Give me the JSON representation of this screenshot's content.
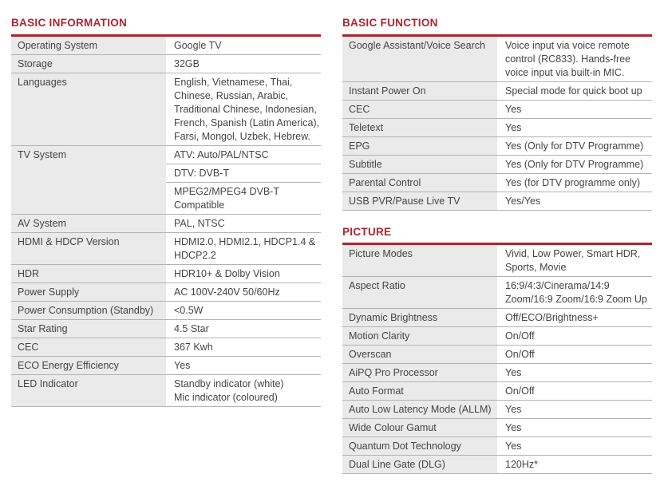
{
  "colors": {
    "accent_red": "#B0242F",
    "label_bg": "#EAEAEA",
    "divider": "#B3B3B3",
    "text": "#444444"
  },
  "tables": [
    {
      "id": "basic-information",
      "title": "BASIC INFORMATION",
      "rows": [
        {
          "label": "Operating System",
          "values": [
            "Google TV"
          ]
        },
        {
          "label": "Storage",
          "values": [
            "32GB"
          ]
        },
        {
          "label": "Languages",
          "values": [
            "English, Vietnamese, Thai,\nChinese, Russian, Arabic,\nTraditional Chinese, Indonesian,\nFrench, Spanish (Latin America),\nFarsi, Mongol, Uzbek, Hebrew."
          ]
        },
        {
          "label": "TV System",
          "values": [
            "ATV: Auto/PAL/NTSC",
            "DTV: DVB-T",
            "MPEG2/MPEG4 DVB-T\nCompatible"
          ]
        },
        {
          "label": "AV System",
          "values": [
            "PAL, NTSC"
          ]
        },
        {
          "label": "HDMI & HDCP Version",
          "values": [
            "HDMI2.0, HDMI2.1, HDCP1.4 &\nHDCP2.2"
          ]
        },
        {
          "label": "HDR",
          "values": [
            "HDR10+ & Dolby Vision"
          ]
        },
        {
          "label": "Power Supply",
          "values": [
            "AC 100V-240V 50/60Hz"
          ]
        },
        {
          "label": "Power Consumption (Standby)",
          "values": [
            "<0.5W"
          ]
        },
        {
          "label": "Star Rating",
          "values": [
            "4.5 Star"
          ]
        },
        {
          "label": "CEC",
          "values": [
            "367 Kwh"
          ]
        },
        {
          "label": "ECO Energy Efficiency",
          "values": [
            "Yes"
          ]
        },
        {
          "label": "LED Indicator",
          "values": [
            "Standby indicator (white)\nMic indicator (coloured)"
          ]
        }
      ]
    },
    {
      "id": "basic-function",
      "title": "BASIC FUNCTION",
      "rows": [
        {
          "label": "Google Assistant/Voice Search",
          "values": [
            "Voice input via voice remote\ncontrol (RC833). Hands-free\nvoice input via built-in MIC."
          ]
        },
        {
          "label": "Instant Power On",
          "values": [
            "Special mode for quick boot up"
          ]
        },
        {
          "label": "CEC",
          "values": [
            "Yes"
          ]
        },
        {
          "label": "Teletext",
          "values": [
            "Yes"
          ]
        },
        {
          "label": "EPG",
          "values": [
            "Yes (Only for DTV Programme)"
          ]
        },
        {
          "label": "Subtitle",
          "values": [
            "Yes (Only for DTV Programme)"
          ]
        },
        {
          "label": "Parental Control",
          "values": [
            "Yes (for DTV programme only)"
          ]
        },
        {
          "label": "USB PVR/Pause Live TV",
          "values": [
            "Yes/Yes"
          ]
        }
      ]
    },
    {
      "id": "picture",
      "title": "PICTURE",
      "rows": [
        {
          "label": "Picture Modes",
          "values": [
            "Vivid, Low Power, Smart HDR,\nSports, Movie"
          ]
        },
        {
          "label": "Aspect Ratio",
          "values": [
            "16:9/4:3/Cinerama/14:9\nZoom/16:9 Zoom/16:9 Zoom Up"
          ]
        },
        {
          "label": "Dynamic Brightness",
          "values": [
            "Off/ECO/Brightness+"
          ]
        },
        {
          "label": "Motion Clarity",
          "values": [
            "On/Off"
          ]
        },
        {
          "label": "Overscan",
          "values": [
            "On/Off"
          ]
        },
        {
          "label": "AiPQ Pro Processor",
          "values": [
            "Yes"
          ]
        },
        {
          "label": "Auto Format",
          "values": [
            "On/Off"
          ]
        },
        {
          "label": "Auto Low Latency Mode (ALLM)",
          "values": [
            "Yes"
          ]
        },
        {
          "label": "Wide Colour Gamut",
          "values": [
            "Yes"
          ]
        },
        {
          "label": "Quantum Dot Technology",
          "values": [
            "Yes"
          ]
        },
        {
          "label": "Dual Line Gate (DLG)",
          "values": [
            "120Hz*"
          ]
        }
      ]
    }
  ]
}
